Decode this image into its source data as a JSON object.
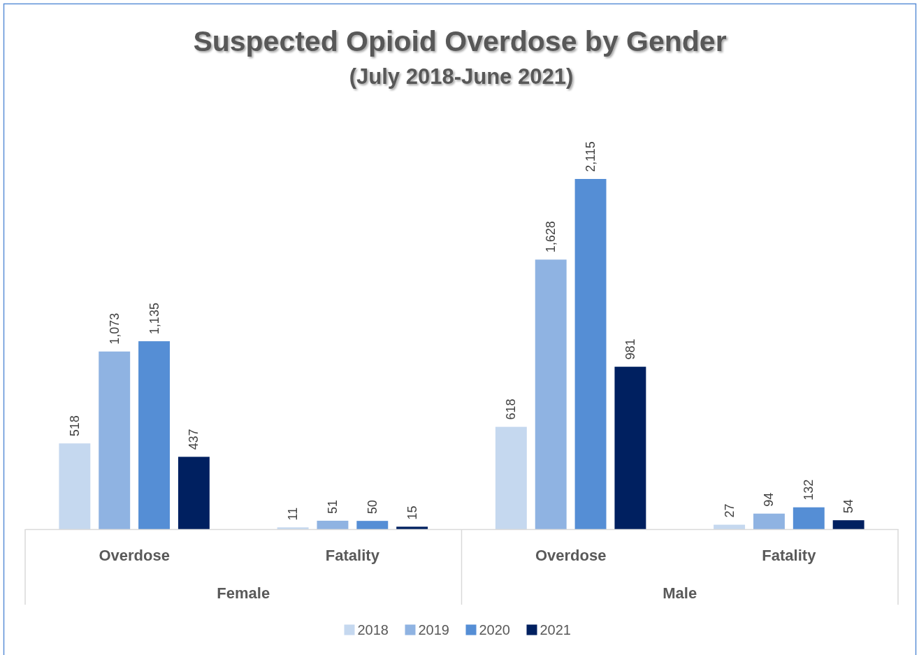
{
  "chart_data": {
    "type": "bar",
    "title": "Suspected Opioid Overdose by Gender",
    "subtitle": "(July 2018-June 2021)",
    "categories": [
      "Overdose",
      "Fatality",
      "Overdose",
      "Fatality"
    ],
    "annotations": [
      "Female",
      "Male"
    ],
    "series": [
      {
        "name": "2018",
        "color": "#c5d8ef",
        "values": [
          518,
          11,
          618,
          27
        ],
        "value_labels": [
          "518",
          "11",
          "618",
          "27"
        ]
      },
      {
        "name": "2019",
        "color": "#8fb3e2",
        "values": [
          1073,
          51,
          1628,
          94
        ],
        "value_labels": [
          "1,073",
          "51",
          "1,628",
          "94"
        ]
      },
      {
        "name": "2020",
        "color": "#558ed5",
        "values": [
          1135,
          50,
          2115,
          132
        ],
        "value_labels": [
          "1,135",
          "50",
          "2,115",
          "132"
        ]
      },
      {
        "name": "2021",
        "color": "#002060",
        "values": [
          437,
          15,
          981,
          54
        ],
        "value_labels": [
          "437",
          "15",
          "981",
          "54"
        ]
      }
    ],
    "legend": "bottom"
  }
}
